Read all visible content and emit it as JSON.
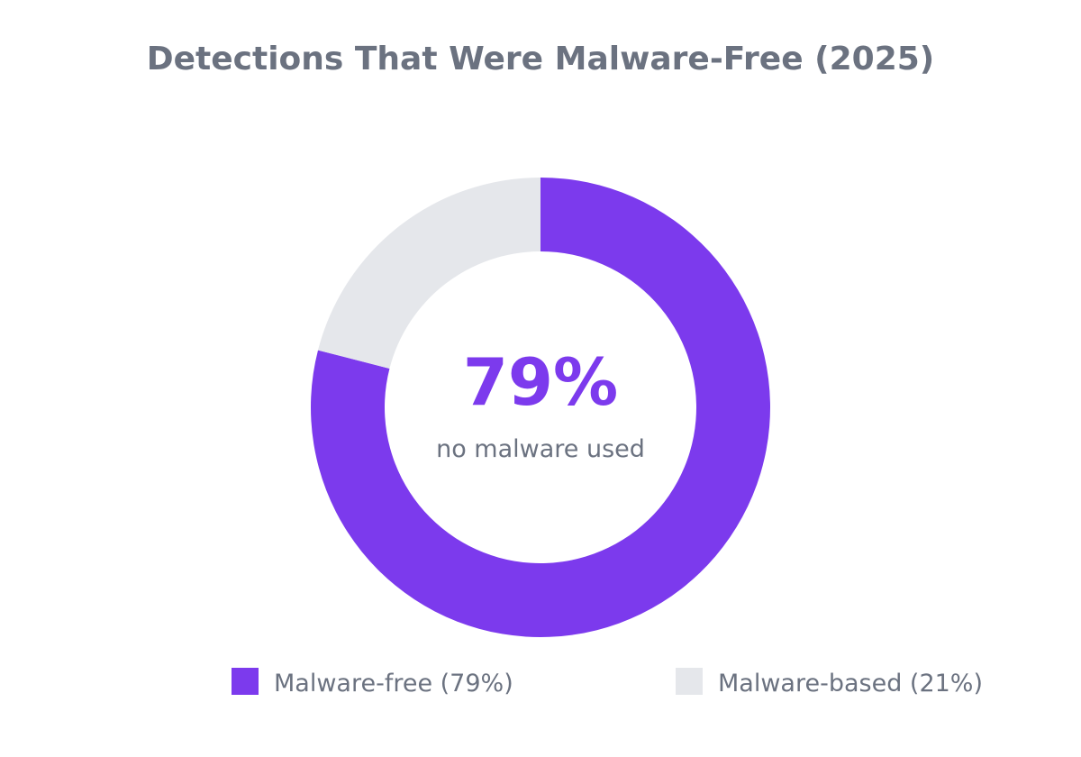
{
  "chart_data": {
    "type": "pie",
    "style": "donut",
    "title": "Detections That Were Malware-Free (2025)",
    "center_value": "79%",
    "center_caption": "no malware used",
    "categories": [
      "Malware-free",
      "Malware-based"
    ],
    "values": [
      79,
      21
    ],
    "unit": "%",
    "colors": [
      "#7c3aed",
      "#e5e7eb"
    ],
    "legend": {
      "placement": "bottom",
      "entries": [
        "Malware-free (79%)",
        "Malware-based (21%)"
      ]
    }
  }
}
